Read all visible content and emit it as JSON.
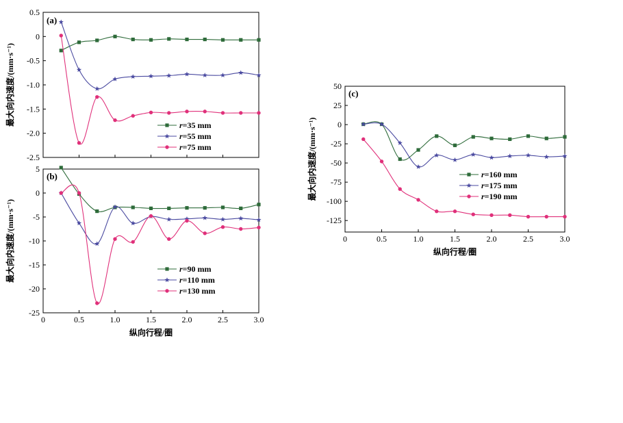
{
  "figure": {
    "xlabel": "纵向行程/圈",
    "ylabel": "最大向内速度/(mm·s⁻¹)"
  },
  "chart_data": [
    {
      "id": "a",
      "label": "(a)",
      "type": "line",
      "xlim": [
        0,
        3.0
      ],
      "ylim": [
        -2.5,
        0.5
      ],
      "xticks": [
        "0",
        "0.5",
        "1.0",
        "1.5",
        "2.0",
        "2.5",
        "3.0"
      ],
      "xtick_values": [
        0,
        0.5,
        1.0,
        1.5,
        2.0,
        2.5,
        3.0
      ],
      "yticks": [
        "0.5",
        "0",
        "-0.5",
        "-1.0",
        "-1.5",
        "-2.0",
        "-2.5"
      ],
      "ytick_values": [
        0.5,
        0,
        -0.5,
        -1.0,
        -1.5,
        -2.0,
        -2.5
      ],
      "show_xticklabels": false,
      "xlabel": "",
      "ylabel": "最大向内速度/(mm·s⁻¹)",
      "x": [
        0.25,
        0.5,
        0.75,
        1.0,
        1.25,
        1.5,
        1.75,
        2.0,
        2.25,
        2.5,
        2.75,
        3.0
      ],
      "series": [
        {
          "name": "r=35 mm",
          "prefix": "r",
          "suffix": "=35 mm",
          "color": "#2e6b3a",
          "marker": "square",
          "values": [
            -0.29,
            -0.12,
            -0.08,
            0.0,
            -0.06,
            -0.07,
            -0.05,
            -0.06,
            -0.06,
            -0.07,
            -0.07,
            -0.07
          ]
        },
        {
          "name": "r=55 mm",
          "prefix": "r",
          "suffix": "=55 mm",
          "color": "#4a4aa0",
          "marker": "star",
          "values": [
            0.3,
            -0.69,
            -1.08,
            -0.88,
            -0.83,
            -0.82,
            -0.81,
            -0.78,
            -0.8,
            -0.8,
            -0.75,
            -0.8
          ]
        },
        {
          "name": "r=75 mm",
          "prefix": "r",
          "suffix": "=75 mm",
          "color": "#e0307a",
          "marker": "circle",
          "values": [
            0.02,
            -2.2,
            -1.25,
            -1.73,
            -1.64,
            -1.57,
            -1.58,
            -1.55,
            -1.55,
            -1.58,
            -1.58,
            -1.58
          ]
        }
      ]
    },
    {
      "id": "b",
      "label": "(b)",
      "type": "line",
      "xlim": [
        0,
        3.0
      ],
      "ylim": [
        -25,
        5
      ],
      "xticks": [
        "0",
        "0.5",
        "1.0",
        "1.5",
        "2.0",
        "2.5",
        "3.0"
      ],
      "xtick_values": [
        0,
        0.5,
        1.0,
        1.5,
        2.0,
        2.5,
        3.0
      ],
      "yticks": [
        "5",
        "0",
        "-5",
        "-10",
        "-15",
        "-20",
        "-25"
      ],
      "ytick_values": [
        5,
        0,
        -5,
        -10,
        -15,
        -20,
        -25
      ],
      "show_xticklabels": true,
      "xlabel": "纵向行程/圈",
      "ylabel": "最大向内速度/(mm·s⁻¹)",
      "x": [
        0.25,
        0.5,
        0.75,
        1.0,
        1.25,
        1.5,
        1.75,
        2.0,
        2.25,
        2.5,
        2.75,
        3.0
      ],
      "series": [
        {
          "name": "r=90 mm",
          "prefix": "r",
          "suffix": "=90 mm",
          "color": "#2e6b3a",
          "marker": "square",
          "values": [
            5.3,
            -0.2,
            -3.8,
            -3.0,
            -3.0,
            -3.2,
            -3.2,
            -3.1,
            -3.1,
            -3.0,
            -3.2,
            -2.4
          ]
        },
        {
          "name": "r=110 mm",
          "prefix": "r",
          "suffix": "=110 mm",
          "color": "#4a4aa0",
          "marker": "star",
          "values": [
            0.0,
            -6.3,
            -10.6,
            -2.9,
            -6.3,
            -4.9,
            -5.5,
            -5.4,
            -5.2,
            -5.5,
            -5.3,
            -5.6
          ]
        },
        {
          "name": "r=130 mm",
          "prefix": "r",
          "suffix": "=130 mm",
          "color": "#e0307a",
          "marker": "circle",
          "values": [
            0.0,
            0.0,
            -23.0,
            -9.6,
            -10.2,
            -4.8,
            -9.6,
            -5.8,
            -8.4,
            -7.1,
            -7.5,
            -7.2
          ]
        }
      ]
    },
    {
      "id": "c",
      "label": "(c)",
      "type": "line",
      "xlim": [
        0,
        3.0
      ],
      "ylim": [
        -140,
        50
      ],
      "xticks": [
        "0",
        "0.5",
        "1.0",
        "1.5",
        "2.0",
        "2.5",
        "3.0"
      ],
      "xtick_values": [
        0,
        0.5,
        1.0,
        1.5,
        2.0,
        2.5,
        3.0
      ],
      "yticks": [
        "50",
        "25",
        "0",
        "-25",
        "-50",
        "-75",
        "-100",
        "-125"
      ],
      "ytick_values": [
        50,
        25,
        0,
        -25,
        -50,
        -75,
        -100,
        -125
      ],
      "show_xticklabels": true,
      "xlabel": "纵向行程/圈",
      "ylabel": "最大向内速度/(mm·s⁻¹)",
      "x": [
        0.25,
        0.5,
        0.75,
        1.0,
        1.25,
        1.5,
        1.75,
        2.0,
        2.25,
        2.5,
        2.75,
        3.0
      ],
      "series": [
        {
          "name": "r=160 mm",
          "prefix": "r",
          "suffix": "=160 mm",
          "color": "#2e6b3a",
          "marker": "square",
          "values": [
            0.5,
            0.5,
            -45,
            -33,
            -15,
            -27,
            -16,
            -18,
            -19,
            -15,
            -18,
            -16
          ]
        },
        {
          "name": "r=175 mm",
          "prefix": "r",
          "suffix": "=175 mm",
          "color": "#4a4aa0",
          "marker": "star",
          "values": [
            0.5,
            0.5,
            -24,
            -55,
            -40,
            -46,
            -39,
            -43,
            -41,
            -40,
            -42,
            -41
          ]
        },
        {
          "name": "r=190 mm",
          "prefix": "r",
          "suffix": "=190 mm",
          "color": "#e0307a",
          "marker": "circle",
          "values": [
            -19,
            -48,
            -84,
            -98,
            -113,
            -113,
            -117,
            -118,
            -118,
            -120,
            -120,
            -120
          ]
        }
      ]
    }
  ]
}
